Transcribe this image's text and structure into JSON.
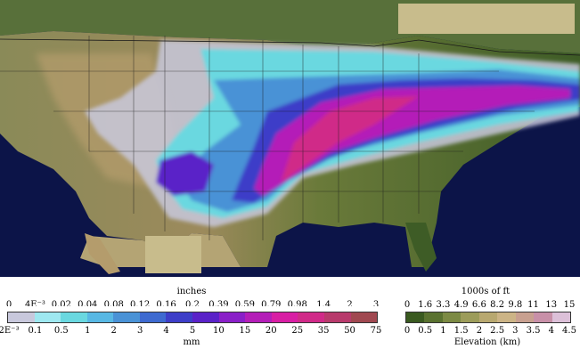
{
  "precip_legend": {
    "top_title": "inches",
    "bottom_title": "mm",
    "inch_labels": [
      "0",
      "4E⁻³",
      "0.02",
      "0.04",
      "0.08",
      "0.12",
      "0.16",
      "0.2",
      "0.39",
      "0.59",
      "0.79",
      "0.98",
      "1.4",
      "2",
      "3"
    ],
    "mm_labels": [
      "2E⁻³",
      "0.1",
      "0.5",
      "1",
      "2",
      "3",
      "4",
      "5",
      "10",
      "15",
      "20",
      "25",
      "35",
      "50",
      "75"
    ],
    "colors": [
      "#c8c8dc",
      "#9ee8f0",
      "#6ad8e0",
      "#58b8e4",
      "#4a92d6",
      "#3e6ad0",
      "#3d3ec8",
      "#5a22c8",
      "#8a20c8",
      "#b41eb8",
      "#d81ea4",
      "#d02a88",
      "#b83a6c",
      "#a04850"
    ]
  },
  "elevation_legend": {
    "top_title": "1000s of ft",
    "bottom_title": "Elevation (km)",
    "ft_labels": [
      "0",
      "1.6",
      "3.3",
      "4.9",
      "6.6",
      "8.2",
      "9.8",
      "11",
      "13",
      "15"
    ],
    "km_labels": [
      "0",
      "0.5",
      "1",
      "1.5",
      "2",
      "2.5",
      "3",
      "3.5",
      "4",
      "4.5"
    ],
    "colors": [
      "#3a5a20",
      "#5a7230",
      "#7c8a44",
      "#9c9c5a",
      "#b8a870",
      "#ccb486",
      "#c8a090",
      "#c890a8",
      "#dcc0d8"
    ]
  },
  "map_colors": {
    "ocean": "#0c1448",
    "lake": "#14245a",
    "land_low": "#4a6e2c",
    "land_high": "#b49c6c",
    "no_data": "#c8bc8c"
  }
}
